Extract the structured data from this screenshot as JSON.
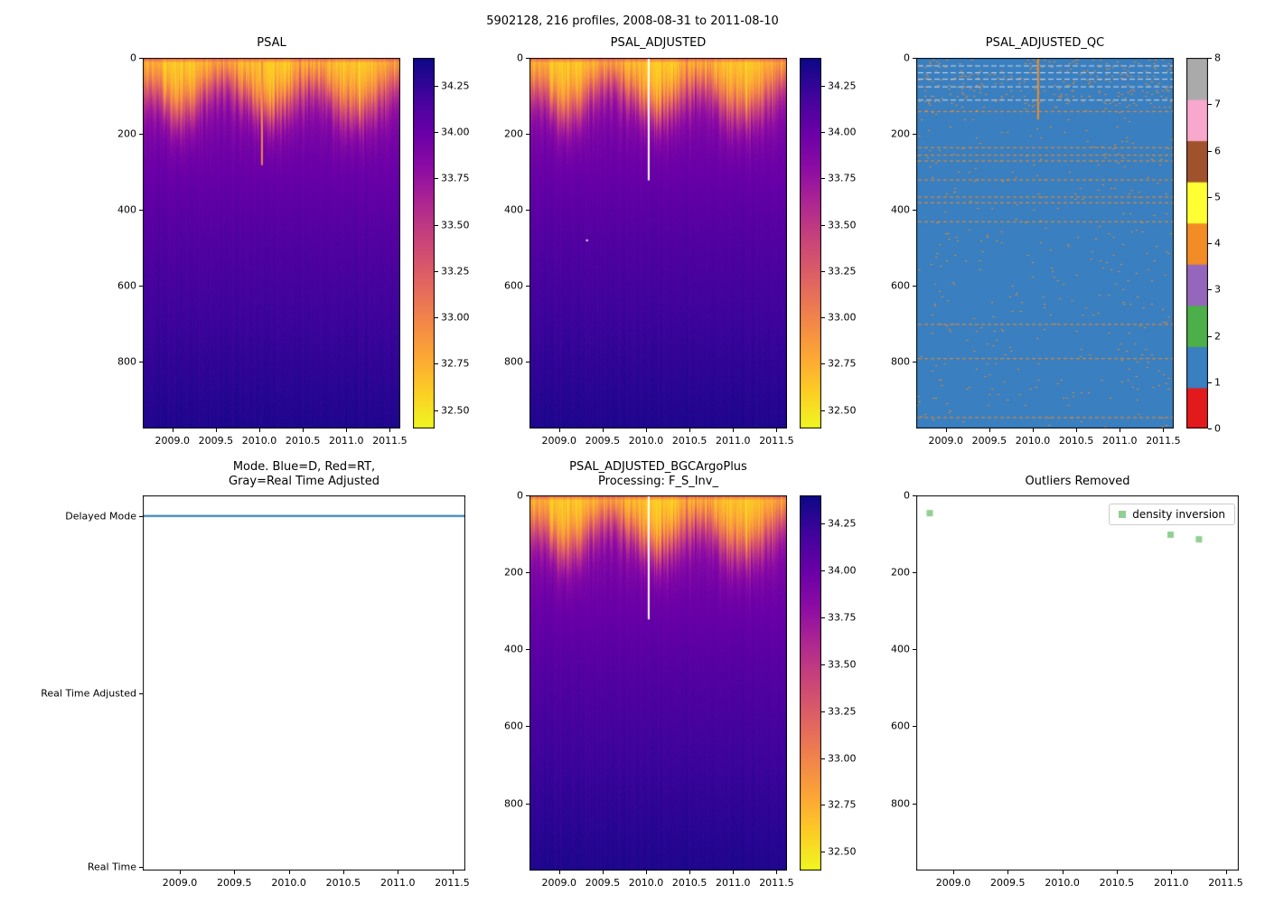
{
  "figure": {
    "title": "5902128, 216 profiles, 2008-08-31 to 2011-08-10",
    "float_id": "5902128",
    "profile_count": 216,
    "date_range": "2008-08-31 to 2011-08-10"
  },
  "chart_data": [
    {
      "id": "psal",
      "type": "heatmap",
      "title": "PSAL",
      "x_range": [
        2008.66,
        2011.62
      ],
      "x_tick_labels": [
        "2009.0",
        "2009.5",
        "2010.0",
        "2010.5",
        "2011.0",
        "2011.5"
      ],
      "y_range": [
        0,
        975
      ],
      "y_tick_labels": [
        "0",
        "200",
        "400",
        "600",
        "800"
      ],
      "value_range": [
        32.4,
        34.4
      ],
      "colormap": "plasma_reversed",
      "colorbar_tick_labels": [
        "34.25",
        "34.00",
        "33.75",
        "33.50",
        "33.25",
        "33.00",
        "32.75",
        "32.50"
      ],
      "pattern": {
        "surface_salinity": 32.6,
        "deep_salinity": 34.33,
        "mixed_layer_depth_m": 95,
        "seasonal_amplitude_m": 40,
        "halocline_width_m": 30,
        "top_layer_salinity": 33.15,
        "anomaly": {
          "type": "low-salinity spike column",
          "time": 2010.03,
          "depth_extent_m": 280
        }
      }
    },
    {
      "id": "psal_adjusted",
      "type": "heatmap",
      "title": "PSAL_ADJUSTED",
      "x_range": [
        2008.66,
        2011.62
      ],
      "x_tick_labels": [
        "2009.0",
        "2009.5",
        "2010.0",
        "2010.5",
        "2011.0",
        "2011.5"
      ],
      "y_range": [
        0,
        975
      ],
      "y_tick_labels": [
        "0",
        "200",
        "400",
        "600",
        "800"
      ],
      "value_range": [
        32.4,
        34.4
      ],
      "colormap": "plasma_reversed",
      "colorbar_tick_labels": [
        "34.25",
        "34.00",
        "33.75",
        "33.50",
        "33.25",
        "33.00",
        "32.75",
        "32.50"
      ],
      "pattern": {
        "surface_salinity": 32.6,
        "deep_salinity": 34.33,
        "mixed_layer_depth_m": 95,
        "seasonal_amplitude_m": 40,
        "halocline_width_m": 30,
        "top_layer_salinity": 33.15,
        "anomaly": {
          "type": "missing (white) column",
          "time": 2010.03,
          "depth_extent_m": 320
        }
      }
    },
    {
      "id": "psal_adjusted_qc",
      "type": "heatmap",
      "title": "PSAL_ADJUSTED_QC",
      "x_range": [
        2008.66,
        2011.62
      ],
      "x_tick_labels": [
        "2009.0",
        "2009.5",
        "2010.0",
        "2010.5",
        "2011.0",
        "2011.5"
      ],
      "y_range": [
        0,
        975
      ],
      "y_tick_labels": [
        "0",
        "200",
        "400",
        "600",
        "800"
      ],
      "value_range": [
        0,
        8
      ],
      "colorbar_tick_labels": [
        "0",
        "1",
        "2",
        "3",
        "4",
        "5",
        "6",
        "7",
        "8"
      ],
      "qc_palette": [
        "#e31a1c",
        "#3a7fbf",
        "#4caf4a",
        "#9467bd",
        "#f28c26",
        "#ffff33",
        "#a0522d",
        "#f7a8cc",
        "#aaaaaa"
      ],
      "dominant_flag": 1,
      "speckle_flag": 4,
      "flag4_dashed_line_depths_m": [
        140,
        235,
        255,
        270,
        320,
        365,
        380,
        430,
        700,
        790,
        945
      ],
      "light_gap_line_depths_m": [
        20,
        38,
        55,
        75,
        110
      ],
      "flag4_vertical_line": {
        "time": 2010.05,
        "depth_extent_m": 160
      }
    },
    {
      "id": "mode",
      "type": "line",
      "title": "Mode. Blue=D, Red=RT,\nGray=Real Time Adjusted",
      "x_range": [
        2008.66,
        2011.62
      ],
      "x_tick_labels": [
        "2009.0",
        "2009.5",
        "2010.0",
        "2010.5",
        "2011.0",
        "2011.5"
      ],
      "y_categories": [
        "Real Time",
        "Real Time Adjusted",
        "Delayed Mode"
      ],
      "series": [
        {
          "name": "mode",
          "color": "#1f77b4",
          "value": "Delayed Mode",
          "x_start": 2008.66,
          "x_end": 2011.62
        }
      ]
    },
    {
      "id": "psal_adjusted_bgcargoplus",
      "type": "heatmap",
      "title": "PSAL_ADJUSTED_BGCArgoPlus\nProcessing: F_S_Inv_",
      "x_range": [
        2008.66,
        2011.62
      ],
      "x_tick_labels": [
        "2009.0",
        "2009.5",
        "2010.0",
        "2010.5",
        "2011.0",
        "2011.5"
      ],
      "y_range": [
        0,
        975
      ],
      "y_tick_labels": [
        "0",
        "200",
        "400",
        "600",
        "800"
      ],
      "value_range": [
        32.4,
        34.4
      ],
      "colormap": "plasma_reversed",
      "colorbar_tick_labels": [
        "34.25",
        "34.00",
        "33.75",
        "33.50",
        "33.25",
        "33.00",
        "32.75",
        "32.50"
      ],
      "pattern": {
        "surface_salinity": 32.6,
        "deep_salinity": 34.33,
        "mixed_layer_depth_m": 95,
        "seasonal_amplitude_m": 40,
        "halocline_width_m": 30,
        "top_layer_salinity": 33.15,
        "anomaly": {
          "type": "missing (white) column",
          "time": 2010.03,
          "depth_extent_m": 320
        }
      }
    },
    {
      "id": "outliers_removed",
      "type": "scatter",
      "title": "Outliers Removed",
      "x_range": [
        2008.66,
        2011.62
      ],
      "x_tick_labels": [
        "2009.0",
        "2009.5",
        "2010.0",
        "2010.5",
        "2011.0",
        "2011.5"
      ],
      "y_range": [
        0,
        975
      ],
      "y_tick_labels": [
        "0",
        "200",
        "400",
        "600",
        "800"
      ],
      "legend": [
        {
          "label": "density inversion",
          "marker": "square",
          "color": "#92cf92"
        }
      ],
      "points": [
        {
          "x": 2008.78,
          "y_depth_m": 45
        },
        {
          "x": 2010.99,
          "y_depth_m": 101
        },
        {
          "x": 2011.25,
          "y_depth_m": 113
        }
      ]
    }
  ]
}
